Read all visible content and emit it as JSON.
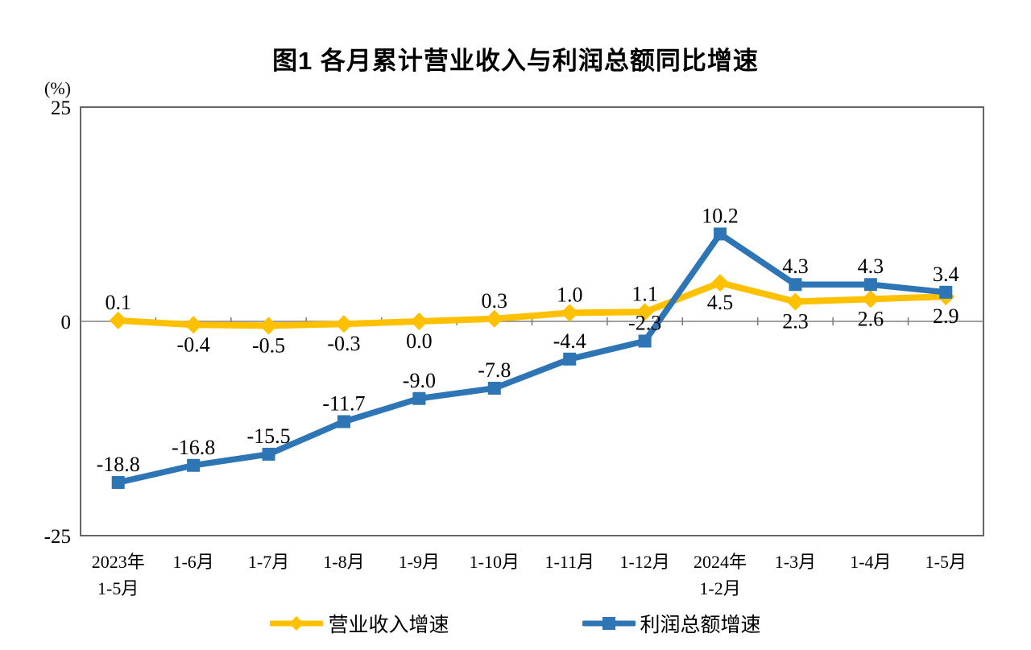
{
  "title": "图1  各月累计营业收入与利润总额同比增速",
  "chart_data": {
    "type": "line",
    "title": "图1  各月累计营业收入与利润总额同比增速",
    "unit_label": "(%)",
    "ylim": [
      -25,
      25
    ],
    "yticks": [
      25,
      0,
      -25
    ],
    "grid": false,
    "legend_position": "bottom",
    "axis_colors": {
      "frame": "#666666",
      "zero_line": "#808080",
      "text": "#000000"
    },
    "categories": [
      [
        "2023年",
        "1-5月"
      ],
      [
        "1-6月"
      ],
      [
        "1-7月"
      ],
      [
        "1-8月"
      ],
      [
        "1-9月"
      ],
      [
        "1-10月"
      ],
      [
        "1-11月"
      ],
      [
        "1-12月"
      ],
      [
        "2024年",
        "1-2月"
      ],
      [
        "1-3月"
      ],
      [
        "1-4月"
      ],
      [
        "1-5月"
      ]
    ],
    "series": [
      {
        "name": "营业收入增速",
        "color": "#FFC000",
        "marker": "diamond",
        "line_width": 8,
        "values": [
          0.1,
          -0.4,
          -0.5,
          -0.3,
          0.0,
          0.3,
          1.0,
          1.1,
          4.5,
          2.3,
          2.6,
          2.9
        ],
        "labels": [
          "0.1",
          "-0.4",
          "-0.5",
          "-0.3",
          "0.0",
          "0.3",
          "1.0",
          "1.1",
          "4.5",
          "2.3",
          "2.6",
          "2.9"
        ],
        "label_side": [
          "above",
          "below",
          "below",
          "below",
          "below",
          "above",
          "above",
          "above",
          "below",
          "below",
          "below",
          "below"
        ]
      },
      {
        "name": "利润总额增速",
        "color": "#2E75B6",
        "marker": "square",
        "line_width": 7.5,
        "values": [
          -18.8,
          -16.8,
          -15.5,
          -11.7,
          -9.0,
          -7.8,
          -4.4,
          -2.3,
          10.2,
          4.3,
          4.3,
          3.4
        ],
        "labels": [
          "-18.8",
          "-16.8",
          "-15.5",
          "-11.7",
          "-9.0",
          "-7.8",
          "-4.4",
          "-2.3",
          "10.2",
          "4.3",
          "4.3",
          "3.4"
        ],
        "label_side": [
          "above",
          "above",
          "above",
          "above",
          "above",
          "above",
          "above",
          "above",
          "above",
          "above",
          "above",
          "above"
        ]
      }
    ]
  }
}
